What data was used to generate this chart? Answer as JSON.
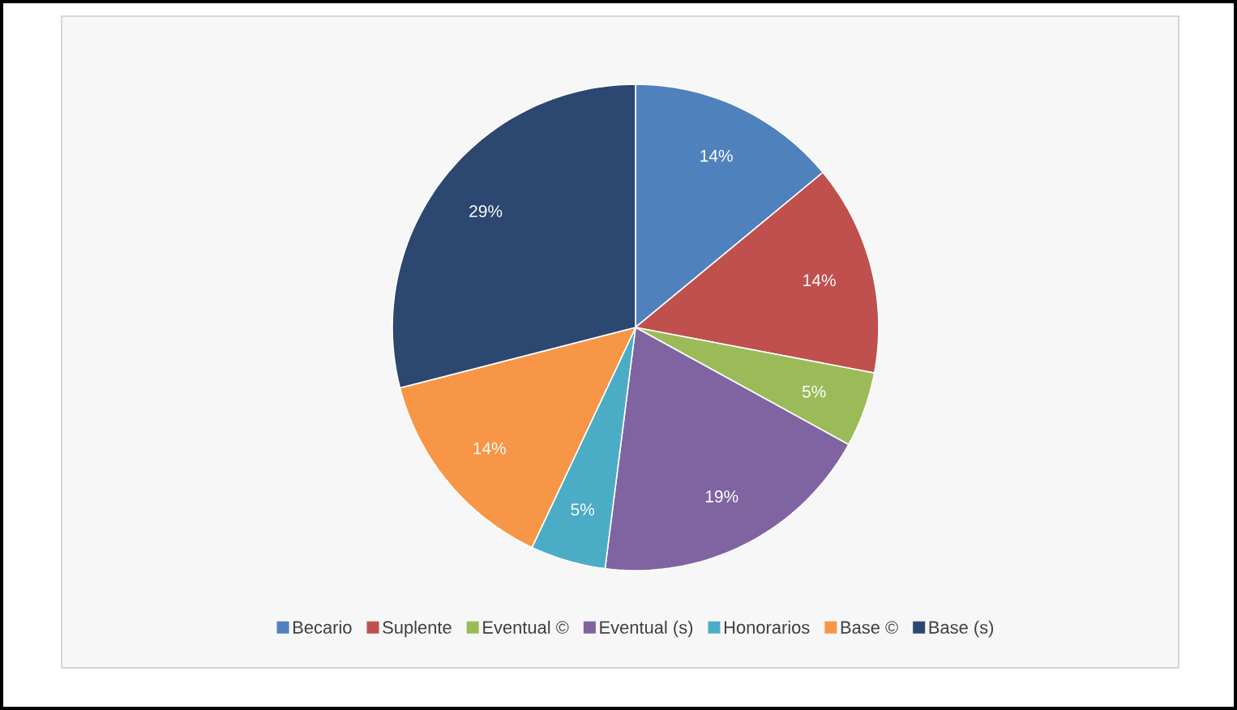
{
  "chart_data": {
    "type": "pie",
    "categories": [
      "Becario",
      "Suplente",
      "Eventual ©",
      "Eventual (s)",
      "Honorarios",
      "Base ©",
      "Base (s)"
    ],
    "values": [
      14,
      14,
      5,
      19,
      5,
      14,
      29
    ],
    "value_labels": [
      "14%",
      "14%",
      "5%",
      "19%",
      "5%",
      "14%",
      "29%"
    ],
    "colors": [
      "#4f81bd",
      "#c0504d",
      "#9bbb59",
      "#8064a2",
      "#4bacc6",
      "#f79646",
      "#2c4770"
    ],
    "legend": "bottom"
  }
}
